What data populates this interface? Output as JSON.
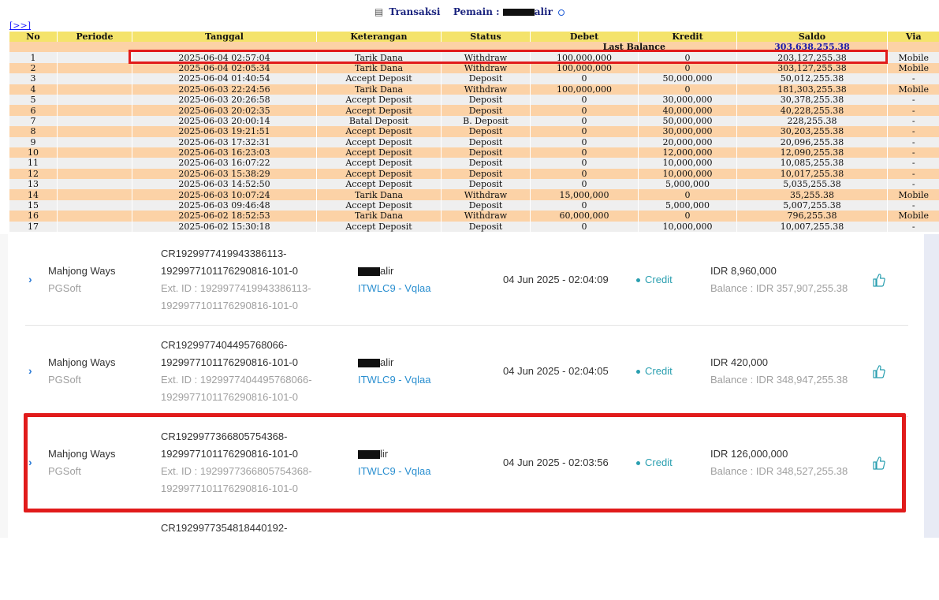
{
  "header": {
    "icon": "document-icon",
    "title": "Transaksi",
    "player_label": "Pemain :",
    "player_name_suffix": "alir",
    "expand_link": "[>>]"
  },
  "ledger": {
    "columns": [
      "No",
      "Periode",
      "Tanggal",
      "Keterangan",
      "Status",
      "Debet",
      "Kredit",
      "Saldo",
      "Via"
    ],
    "last_balance_label": "Last Balance",
    "last_balance_value": "303,638,255.38",
    "rows": [
      {
        "no": "1",
        "periode": "",
        "tanggal": "2025-06-04 02:57:04",
        "keterangan": "Tarik Dana",
        "status": "Withdraw",
        "debet": "100,000,000",
        "kredit": "0",
        "saldo": "203,127,255.38",
        "via": "Mobile"
      },
      {
        "no": "2",
        "periode": "",
        "tanggal": "2025-06-04 02:05:34",
        "keterangan": "Tarik Dana",
        "status": "Withdraw",
        "debet": "100,000,000",
        "kredit": "0",
        "saldo": "303,127,255.38",
        "via": "Mobile"
      },
      {
        "no": "3",
        "periode": "",
        "tanggal": "2025-06-04 01:40:54",
        "keterangan": "Accept Deposit",
        "status": "Deposit",
        "debet": "0",
        "kredit": "50,000,000",
        "saldo": "50,012,255.38",
        "via": "-"
      },
      {
        "no": "4",
        "periode": "",
        "tanggal": "2025-06-03 22:24:56",
        "keterangan": "Tarik Dana",
        "status": "Withdraw",
        "debet": "100,000,000",
        "kredit": "0",
        "saldo": "181,303,255.38",
        "via": "Mobile"
      },
      {
        "no": "5",
        "periode": "",
        "tanggal": "2025-06-03 20:26:58",
        "keterangan": "Accept Deposit",
        "status": "Deposit",
        "debet": "0",
        "kredit": "30,000,000",
        "saldo": "30,378,255.38",
        "via": "-"
      },
      {
        "no": "6",
        "periode": "",
        "tanggal": "2025-06-03 20:02:35",
        "keterangan": "Accept Deposit",
        "status": "Deposit",
        "debet": "0",
        "kredit": "40,000,000",
        "saldo": "40,228,255.38",
        "via": "-"
      },
      {
        "no": "7",
        "periode": "",
        "tanggal": "2025-06-03 20:00:14",
        "keterangan": "Batal Deposit",
        "status": "B. Deposit",
        "debet": "0",
        "kredit": "50,000,000",
        "saldo": "228,255.38",
        "via": "-"
      },
      {
        "no": "8",
        "periode": "",
        "tanggal": "2025-06-03 19:21:51",
        "keterangan": "Accept Deposit",
        "status": "Deposit",
        "debet": "0",
        "kredit": "30,000,000",
        "saldo": "30,203,255.38",
        "via": "-"
      },
      {
        "no": "9",
        "periode": "",
        "tanggal": "2025-06-03 17:32:31",
        "keterangan": "Accept Deposit",
        "status": "Deposit",
        "debet": "0",
        "kredit": "20,000,000",
        "saldo": "20,096,255.38",
        "via": "-"
      },
      {
        "no": "10",
        "periode": "",
        "tanggal": "2025-06-03 16:23:03",
        "keterangan": "Accept Deposit",
        "status": "Deposit",
        "debet": "0",
        "kredit": "12,000,000",
        "saldo": "12,090,255.38",
        "via": "-"
      },
      {
        "no": "11",
        "periode": "",
        "tanggal": "2025-06-03 16:07:22",
        "keterangan": "Accept Deposit",
        "status": "Deposit",
        "debet": "0",
        "kredit": "10,000,000",
        "saldo": "10,085,255.38",
        "via": "-"
      },
      {
        "no": "12",
        "periode": "",
        "tanggal": "2025-06-03 15:38:29",
        "keterangan": "Accept Deposit",
        "status": "Deposit",
        "debet": "0",
        "kredit": "10,000,000",
        "saldo": "10,017,255.38",
        "via": "-"
      },
      {
        "no": "13",
        "periode": "",
        "tanggal": "2025-06-03 14:52:50",
        "keterangan": "Accept Deposit",
        "status": "Deposit",
        "debet": "0",
        "kredit": "5,000,000",
        "saldo": "5,035,255.38",
        "via": "-"
      },
      {
        "no": "14",
        "periode": "",
        "tanggal": "2025-06-03 10:07:24",
        "keterangan": "Tarik Dana",
        "status": "Withdraw",
        "debet": "15,000,000",
        "kredit": "0",
        "saldo": "35,255.38",
        "via": "Mobile"
      },
      {
        "no": "15",
        "periode": "",
        "tanggal": "2025-06-03 09:46:48",
        "keterangan": "Accept Deposit",
        "status": "Deposit",
        "debet": "0",
        "kredit": "5,000,000",
        "saldo": "5,007,255.38",
        "via": "-"
      },
      {
        "no": "16",
        "periode": "",
        "tanggal": "2025-06-02 18:52:53",
        "keterangan": "Tarik Dana",
        "status": "Withdraw",
        "debet": "60,000,000",
        "kredit": "0",
        "saldo": "796,255.38",
        "via": "Mobile"
      },
      {
        "no": "17",
        "periode": "",
        "tanggal": "2025-06-02 15:30:18",
        "keterangan": "Accept Deposit",
        "status": "Deposit",
        "debet": "0",
        "kredit": "10,000,000",
        "saldo": "10,007,255.38",
        "via": "-"
      }
    ]
  },
  "transactions": [
    {
      "chevron_icon": "chevron-right-icon",
      "game": "Mahjong Ways",
      "provider": "PGSoft",
      "code_line1": "CR1929977419943386113-",
      "code_line2": "1929977101176290816-101-0",
      "ext_line1": "Ext. ID : 1929977419943386113-",
      "ext_line2": "1929977101176290816-101-0",
      "user_suffix": "alir",
      "account": "ITWLC9 - Vqlaa",
      "datetime": "04 Jun 2025 - 02:04:09",
      "type": "Credit",
      "amount": "IDR 8,960,000",
      "balance": "Balance : IDR 357,907,255.38",
      "action_icon": "thumbs-up-icon"
    },
    {
      "chevron_icon": "chevron-right-icon",
      "game": "Mahjong Ways",
      "provider": "PGSoft",
      "code_line1": "CR1929977404495768066-",
      "code_line2": "1929977101176290816-101-0",
      "ext_line1": "Ext. ID : 1929977404495768066-",
      "ext_line2": "1929977101176290816-101-0",
      "user_suffix": "alir",
      "account": "ITWLC9 - Vqlaa",
      "datetime": "04 Jun 2025 - 02:04:05",
      "type": "Credit",
      "amount": "IDR 420,000",
      "balance": "Balance : IDR 348,947,255.38",
      "action_icon": "thumbs-up-icon"
    },
    {
      "chevron_icon": "chevron-right-icon",
      "game": "Mahjong Ways",
      "provider": "PGSoft",
      "code_line1": "CR1929977366805754368-",
      "code_line2": "1929977101176290816-101-0",
      "ext_line1": "Ext. ID : 1929977366805754368-",
      "ext_line2": "1929977101176290816-101-0",
      "user_suffix": "lir",
      "account": "ITWLC9 - Vqlaa",
      "datetime": "04 Jun 2025 - 02:03:56",
      "type": "Credit",
      "amount": "IDR 126,000,000",
      "balance": "Balance : IDR 348,527,255.38",
      "action_icon": "thumbs-up-icon"
    },
    {
      "code_line1": "CR1929977354818440192-"
    }
  ],
  "colors": {
    "header_row": "#f4e36b",
    "row_odd": "#efefef",
    "row_even": "#fcd2a6",
    "status_red": "#d9232d",
    "value_blue": "#1a1aaa",
    "highlight_red": "#e11b1b",
    "credit_teal": "#2a9fb0",
    "link_blue": "#2a8fd0"
  }
}
